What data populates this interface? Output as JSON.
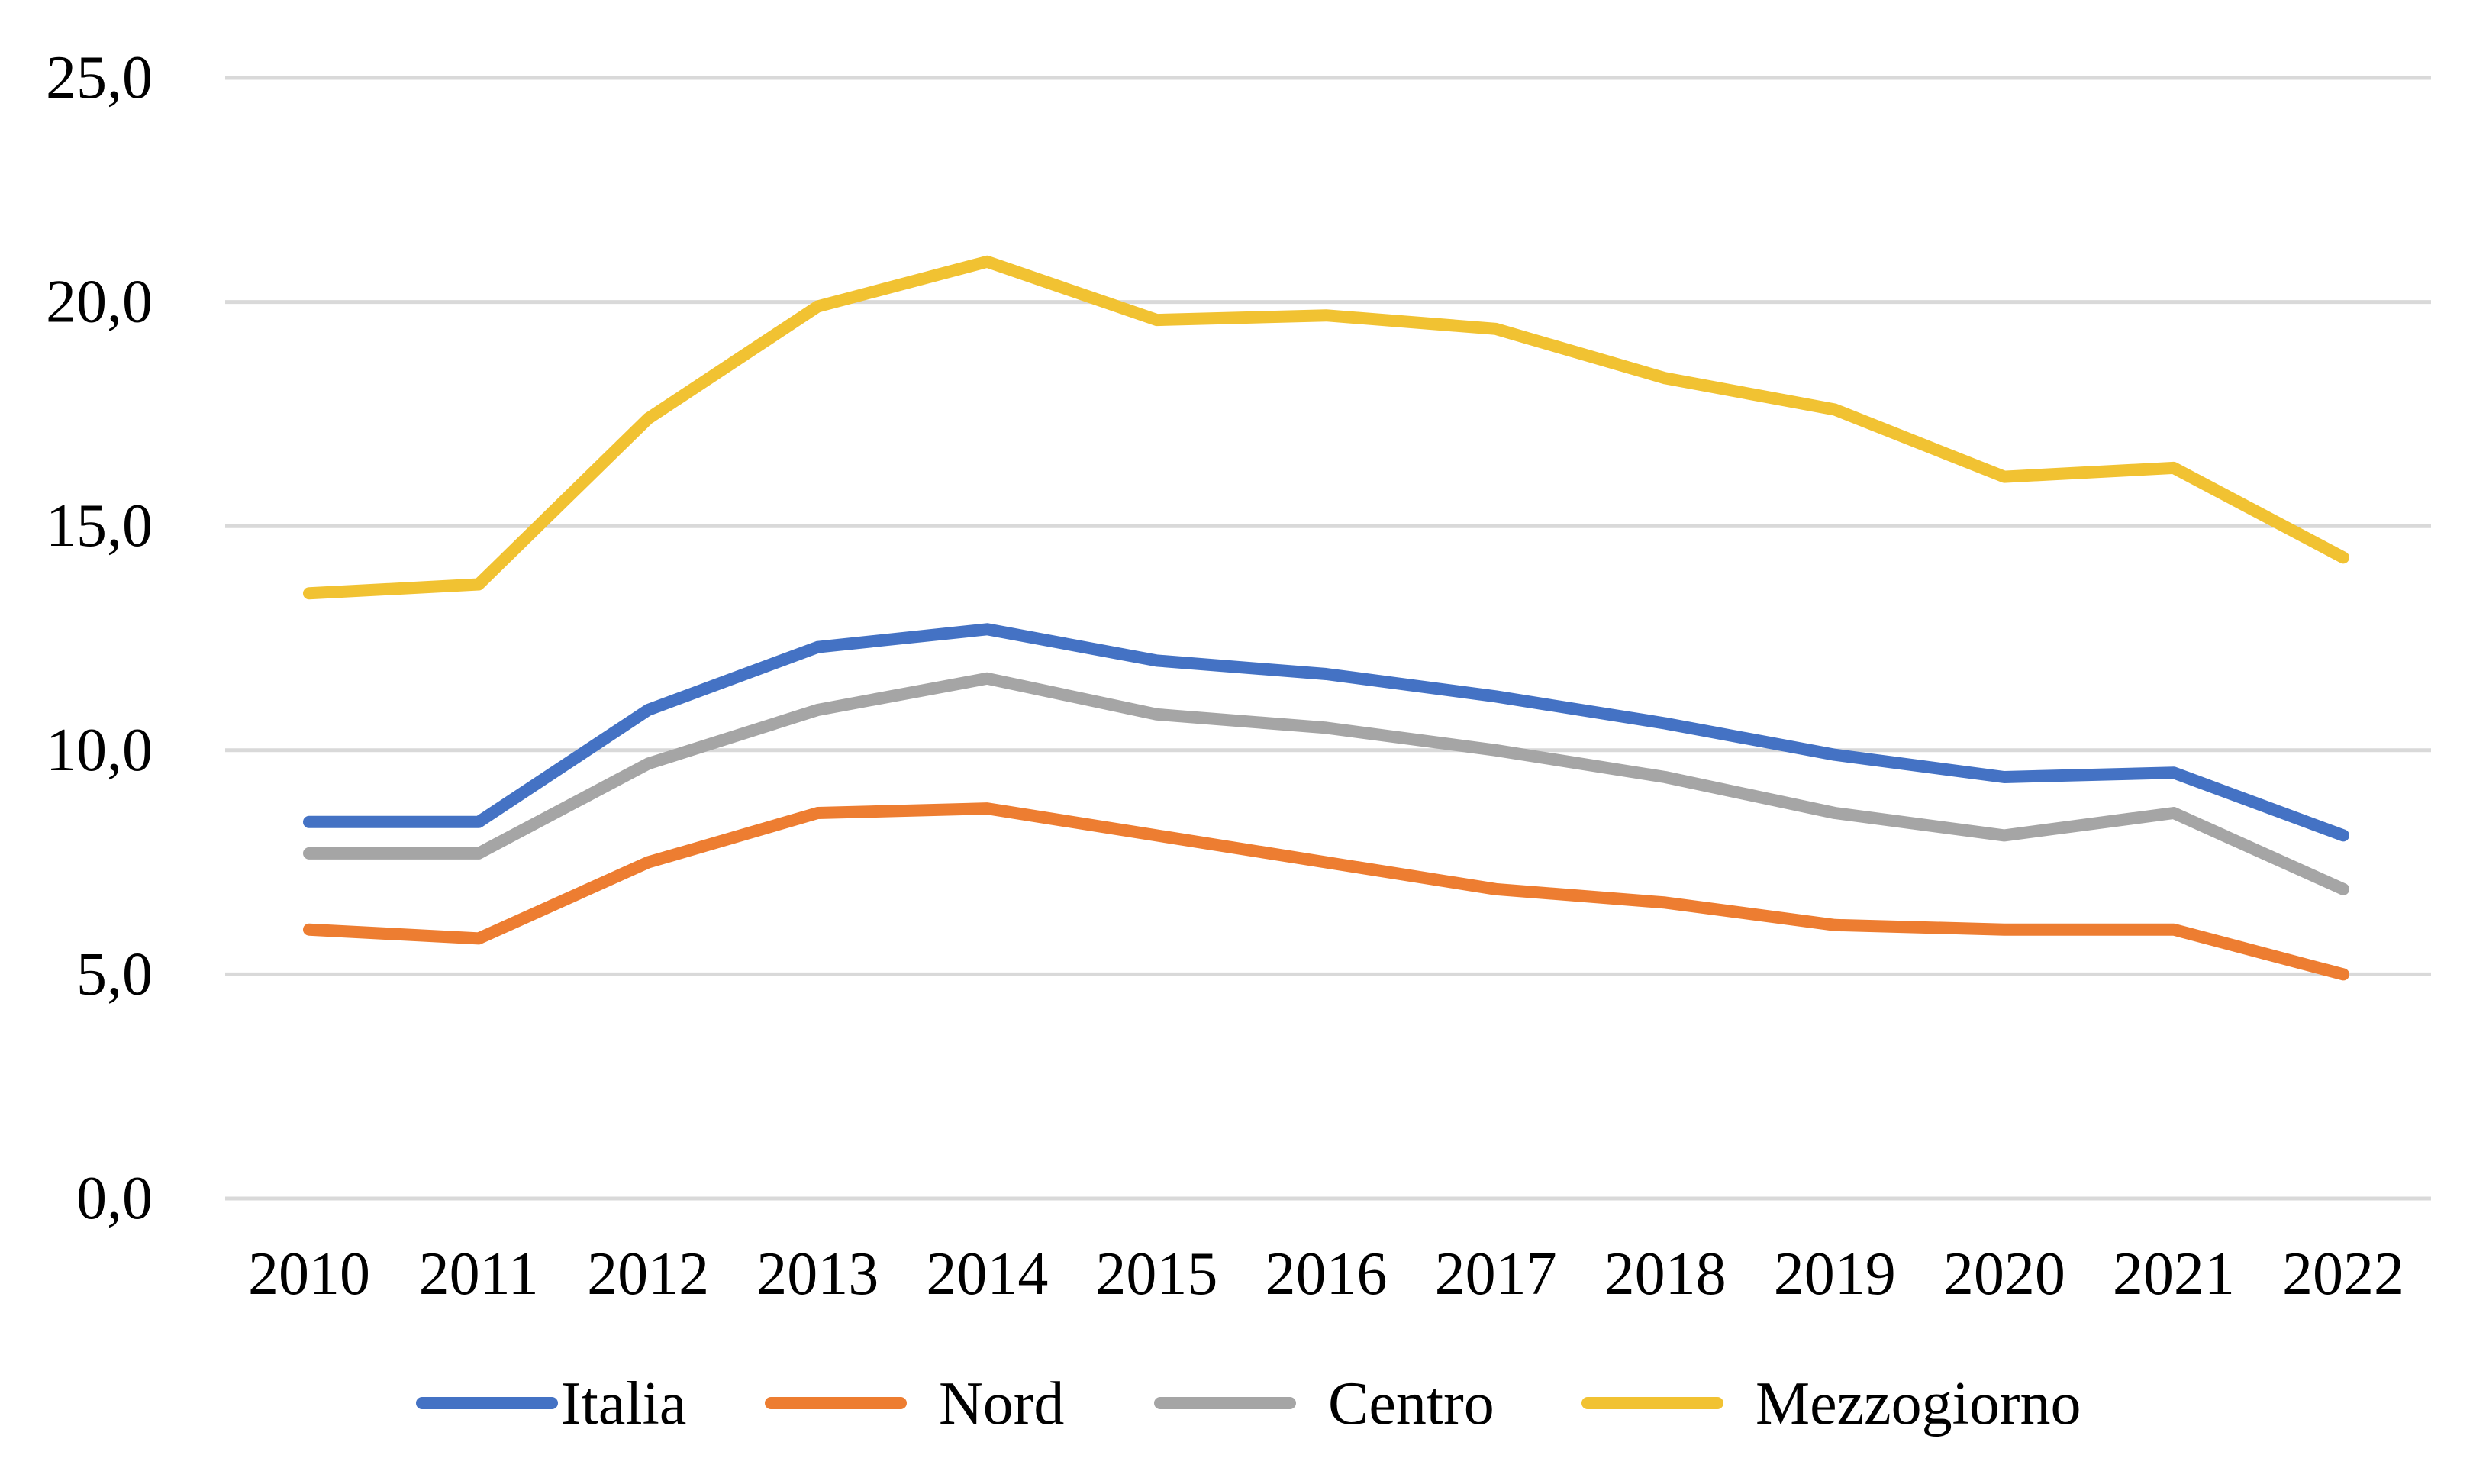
{
  "chart_data": {
    "type": "line",
    "title": "",
    "xlabel": "",
    "ylabel": "",
    "categories": [
      "2010",
      "2011",
      "2012",
      "2013",
      "2014",
      "2015",
      "2016",
      "2017",
      "2018",
      "2019",
      "2020",
      "2021",
      "2022"
    ],
    "ylim": [
      0,
      25
    ],
    "yticks": [
      0,
      5,
      10,
      15,
      20,
      25
    ],
    "ytick_labels": [
      "0,0",
      "5,0",
      "10,0",
      "15,0",
      "20,0",
      "25,0"
    ],
    "grid": true,
    "legend_position": "bottom",
    "series": [
      {
        "name": "Italia",
        "color": "#4472C4",
        "values": [
          8.4,
          8.4,
          10.9,
          12.3,
          12.7,
          12.0,
          11.7,
          11.2,
          10.6,
          9.9,
          9.4,
          9.5,
          8.1
        ]
      },
      {
        "name": "Nord",
        "color": "#ED7D31",
        "values": [
          6.0,
          5.8,
          7.5,
          8.6,
          8.7,
          8.1,
          7.5,
          6.9,
          6.6,
          6.1,
          6.0,
          6.0,
          5.0
        ]
      },
      {
        "name": "Centro",
        "color": "#A5A5A5",
        "values": [
          7.7,
          7.7,
          9.7,
          10.9,
          11.6,
          10.8,
          10.5,
          10.0,
          9.4,
          8.6,
          8.1,
          8.6,
          6.9
        ]
      },
      {
        "name": "Mezzogiorno",
        "color": "#F1C232",
        "values": [
          13.5,
          13.7,
          17.4,
          19.9,
          20.9,
          19.6,
          19.7,
          19.4,
          18.3,
          17.6,
          16.1,
          16.3,
          14.3
        ]
      }
    ]
  }
}
